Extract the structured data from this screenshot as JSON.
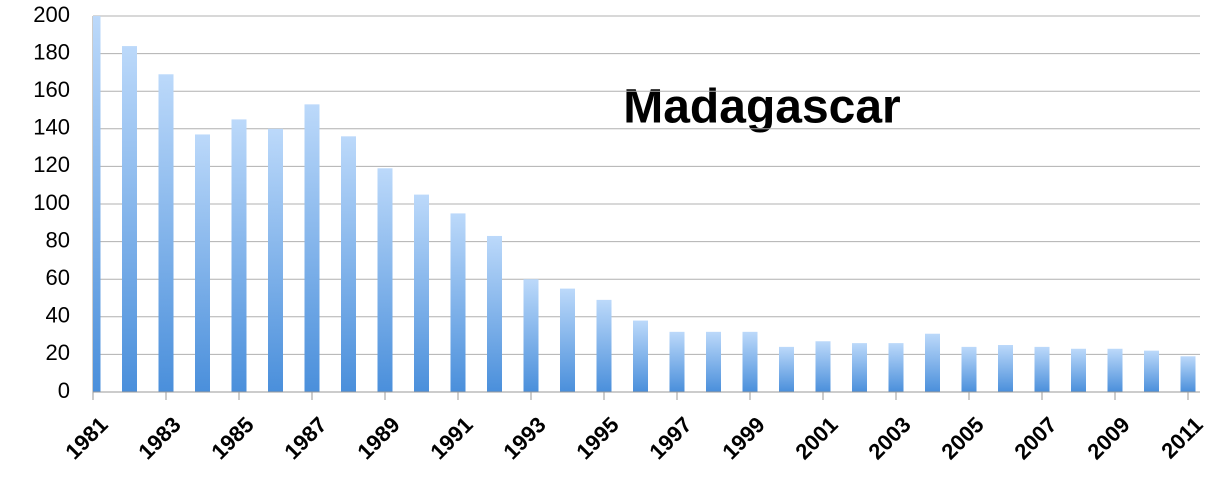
{
  "chart_data": {
    "type": "bar",
    "title": "Madagascar",
    "categories": [
      "1981",
      null,
      "1983",
      null,
      "1985",
      null,
      "1987",
      null,
      "1989",
      null,
      "1991",
      null,
      "1993",
      null,
      "1995",
      null,
      "1997",
      null,
      "1999",
      null,
      "2001",
      null,
      "2003",
      null,
      "2005",
      null,
      "2007",
      null,
      "2009",
      null,
      "2011"
    ],
    "values": [
      200,
      184,
      169,
      137,
      145,
      140,
      153,
      136,
      119,
      105,
      95,
      83,
      60,
      55,
      49,
      38,
      32,
      32,
      32,
      24,
      27,
      26,
      26,
      31,
      24,
      25,
      24,
      23,
      23,
      22,
      19
    ],
    "color": [
      "#bcd9fa",
      "#4a8fdb"
    ],
    "ylim": [
      0,
      200
    ],
    "yticks": [
      0,
      20,
      40,
      60,
      80,
      100,
      120,
      140,
      160,
      180,
      200
    ],
    "grid": true
  }
}
